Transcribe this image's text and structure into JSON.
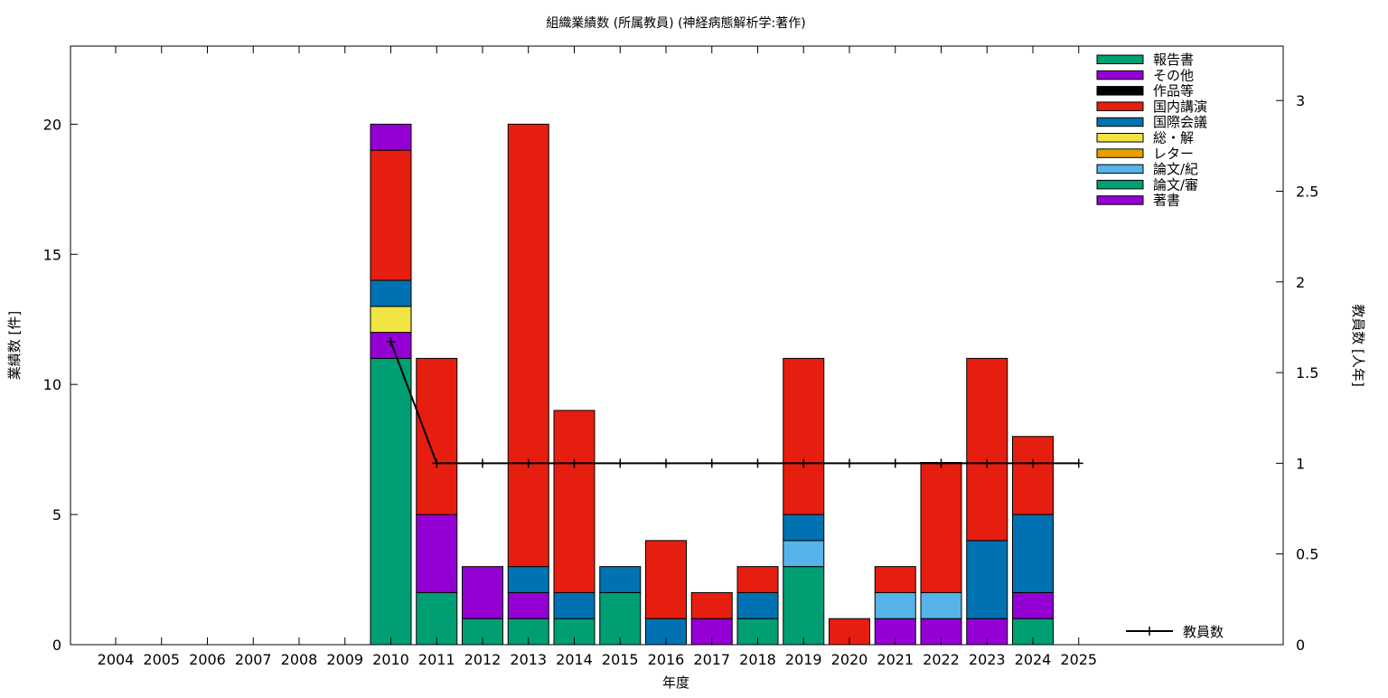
{
  "chart_data": {
    "type": "bar",
    "stacked": true,
    "title": "組織業績数 (所属教員) (神経病態解析学:著作)",
    "xlabel": "年度",
    "ylabel": "業績数 [件]",
    "y2label": "教員数 [人年]",
    "categories": [
      "2004",
      "2005",
      "2006",
      "2007",
      "2008",
      "2009",
      "2010",
      "2011",
      "2012",
      "2013",
      "2014",
      "2015",
      "2016",
      "2017",
      "2018",
      "2019",
      "2020",
      "2021",
      "2022",
      "2023",
      "2024",
      "2025"
    ],
    "ylim": [
      0,
      23
    ],
    "yticks": [
      0,
      5,
      10,
      15,
      20
    ],
    "y2lim": [
      0,
      3.3
    ],
    "y2ticks": [
      0,
      0.5,
      1,
      1.5,
      2,
      2.5,
      3
    ],
    "y2ticklabels": [
      "0",
      "0.5",
      "1",
      "1.5",
      "2",
      "2.5",
      "3"
    ],
    "grid": false,
    "legend_position": "top-right",
    "series": [
      {
        "name": "著書",
        "color": "#9400d3",
        "values": [
          0,
          0,
          0,
          0,
          0,
          0,
          1,
          3,
          2,
          1,
          0,
          0,
          0,
          1,
          0,
          0,
          0,
          1,
          1,
          1,
          1,
          0
        ]
      },
      {
        "name": "論文/審",
        "color": "#009e73",
        "values": [
          0,
          0,
          0,
          0,
          0,
          0,
          11,
          2,
          1,
          1,
          1,
          2,
          0,
          0,
          1,
          3,
          0,
          0,
          0,
          0,
          1,
          0
        ]
      },
      {
        "name": "論文/紀",
        "color": "#56b4e9",
        "values": [
          0,
          0,
          0,
          0,
          0,
          0,
          0,
          0,
          0,
          0,
          0,
          0,
          0,
          0,
          0,
          1,
          0,
          1,
          1,
          0,
          0,
          0
        ]
      },
      {
        "name": "レター",
        "color": "#e69f00",
        "values": [
          0,
          0,
          0,
          0,
          0,
          0,
          0,
          0,
          0,
          0,
          0,
          0,
          0,
          0,
          0,
          0,
          0,
          0,
          0,
          0,
          0,
          0
        ]
      },
      {
        "name": "総・解",
        "color": "#f0e442",
        "values": [
          0,
          0,
          0,
          0,
          0,
          0,
          1,
          0,
          0,
          0,
          0,
          0,
          0,
          0,
          0,
          0,
          0,
          0,
          0,
          0,
          0,
          0
        ]
      },
      {
        "name": "国際会議",
        "color": "#0072b2",
        "values": [
          0,
          0,
          0,
          0,
          0,
          0,
          1,
          0,
          0,
          1,
          1,
          1,
          1,
          0,
          1,
          1,
          0,
          0,
          0,
          3,
          3,
          0
        ]
      },
      {
        "name": "国内講演",
        "color": "#e51e10",
        "values": [
          0,
          0,
          0,
          0,
          0,
          0,
          5,
          6,
          0,
          17,
          7,
          0,
          3,
          1,
          1,
          6,
          1,
          1,
          5,
          7,
          3,
          0
        ]
      },
      {
        "name": "作品等",
        "color": "#000000",
        "values": [
          0,
          0,
          0,
          0,
          0,
          0,
          0,
          0,
          0,
          0,
          0,
          0,
          0,
          0,
          0,
          0,
          0,
          0,
          0,
          0,
          0,
          0
        ]
      },
      {
        "name": "その他",
        "color": "#9400d3",
        "values": [
          0,
          0,
          0,
          0,
          0,
          0,
          1,
          0,
          0,
          0,
          0,
          0,
          0,
          0,
          0,
          0,
          0,
          0,
          0,
          0,
          0,
          0
        ]
      },
      {
        "name": "報告書",
        "color": "#009e73",
        "values": [
          0,
          0,
          0,
          0,
          0,
          0,
          0,
          0,
          0,
          0,
          0,
          0,
          0,
          0,
          0,
          0,
          0,
          0,
          0,
          0,
          0,
          0
        ]
      }
    ],
    "stack_order": [
      1,
      0,
      2,
      3,
      4,
      5,
      6,
      7,
      8,
      9
    ],
    "legend_order": [
      9,
      8,
      7,
      6,
      5,
      4,
      3,
      2,
      1,
      0
    ],
    "line_series": {
      "name": "教員数",
      "axis": "y2",
      "color": "#000000",
      "categories": [
        "2010",
        "2011",
        "2012",
        "2013",
        "2014",
        "2015",
        "2016",
        "2017",
        "2018",
        "2019",
        "2020",
        "2021",
        "2022",
        "2023",
        "2024",
        "2025"
      ],
      "values": [
        1.67,
        1,
        1,
        1,
        1,
        1,
        1,
        1,
        1,
        1,
        1,
        1,
        1,
        1,
        1,
        1
      ]
    }
  }
}
